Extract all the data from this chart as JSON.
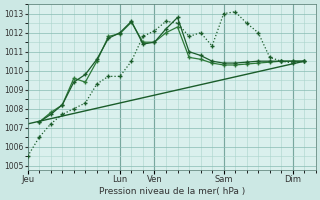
{
  "bg_color": "#cce8e4",
  "plot_bg_color": "#daf0ed",
  "grid_color": "#aad4cc",
  "grid_color_major": "#88bbb3",
  "line_color_dark": "#1a5c2a",
  "line_color_mid": "#2d7a3a",
  "ylabel": "Pression niveau de la mer( hPa )",
  "ylim": [
    1004.8,
    1013.5
  ],
  "yticks": [
    1005,
    1006,
    1007,
    1008,
    1009,
    1010,
    1011,
    1012,
    1013
  ],
  "day_labels": [
    "Jeu",
    "Lun",
    "Ven",
    "Sam",
    "Dim"
  ],
  "day_positions": [
    0,
    8,
    11,
    17,
    23
  ],
  "xlim": [
    0,
    25
  ],
  "series1_x": [
    0,
    1,
    2,
    3,
    4,
    5,
    6,
    7,
    8,
    9,
    10,
    11,
    12,
    13,
    14,
    15,
    16,
    17,
    18,
    19,
    20,
    21,
    22,
    23,
    24
  ],
  "series1": [
    1005.5,
    1006.5,
    1007.2,
    1007.7,
    1008.0,
    1008.3,
    1009.3,
    1009.7,
    1009.7,
    1010.5,
    1011.8,
    1012.1,
    1012.6,
    1012.5,
    1011.8,
    1012.0,
    1011.3,
    1013.0,
    1013.1,
    1012.5,
    1012.0,
    1010.7,
    1010.5,
    1010.4,
    1010.5
  ],
  "series2_x": [
    1,
    2,
    3,
    4,
    5,
    6,
    7,
    8,
    9,
    10,
    11,
    12,
    13,
    14,
    15,
    16,
    17,
    18,
    19,
    20,
    21,
    22,
    23,
    24
  ],
  "series2": [
    1007.3,
    1007.8,
    1008.2,
    1009.6,
    1009.4,
    1010.5,
    1011.8,
    1011.95,
    1012.55,
    1011.5,
    1011.5,
    1012.0,
    1012.3,
    1010.7,
    1010.6,
    1010.4,
    1010.3,
    1010.3,
    1010.35,
    1010.4,
    1010.45,
    1010.5,
    1010.5,
    1010.5
  ],
  "series3_x": [
    1,
    2,
    3,
    4,
    5,
    6,
    7,
    8,
    9,
    10,
    11,
    12,
    13,
    14,
    15,
    16,
    17,
    18,
    19,
    20,
    21,
    22,
    23,
    24
  ],
  "series3": [
    1007.3,
    1007.7,
    1008.2,
    1009.4,
    1009.8,
    1010.6,
    1011.7,
    1012.0,
    1012.6,
    1011.4,
    1011.5,
    1012.2,
    1012.8,
    1011.0,
    1010.8,
    1010.5,
    1010.4,
    1010.4,
    1010.45,
    1010.5,
    1010.5,
    1010.5,
    1010.5,
    1010.5
  ],
  "series4_x": [
    0,
    24
  ],
  "series4": [
    1007.2,
    1010.5
  ]
}
